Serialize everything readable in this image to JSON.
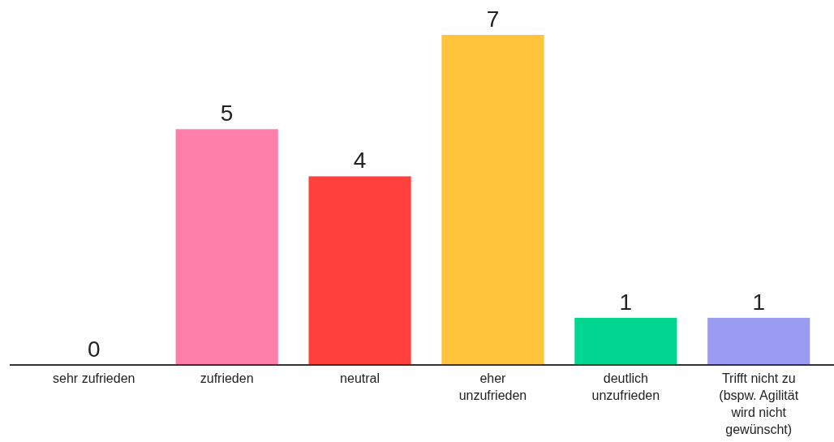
{
  "chart_data": {
    "type": "bar",
    "categories": [
      "sehr zufrieden",
      "zufrieden",
      "neutral",
      "eher unzufrieden",
      "deutlich unzufrieden",
      "Trifft nicht zu (bspw. Agilität wird nicht gewünscht)"
    ],
    "values": [
      0,
      5,
      4,
      7,
      1,
      1
    ],
    "colors": [
      "#5b6cf9",
      "#ff7eaa",
      "#ff403d",
      "#ffc43b",
      "#00d68f",
      "#9a9cf2"
    ],
    "data_labels": true
  }
}
